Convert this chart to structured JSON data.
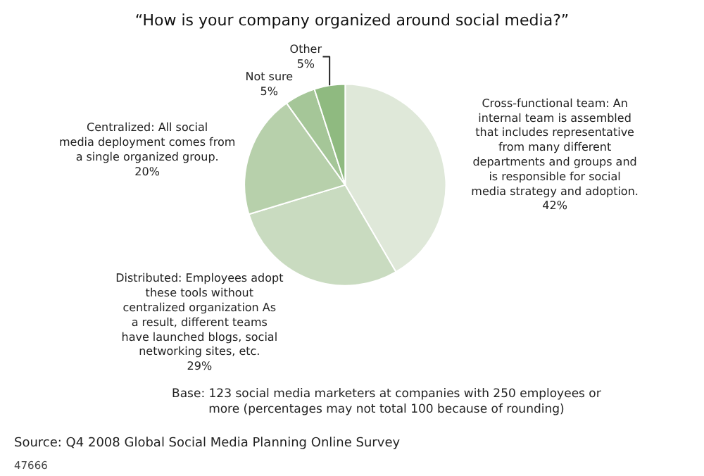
{
  "chart_data": {
    "type": "pie",
    "title": "“How is your company organized around social media?”",
    "categories": [
      "Cross-functional team: An internal team is assembled that includes representative from many different departments and groups and is responsible for social media strategy and adoption.",
      "Distributed: Employees adopt these tools without centralized organization As a result, different teams have launched blogs, social networking sites, etc.",
      "Centralized: All social media deployment comes from a single organized group.",
      "Not sure",
      "Other"
    ],
    "values": [
      42,
      29,
      20,
      5,
      5
    ],
    "value_labels": [
      "42%",
      "29%",
      "20%",
      "5%",
      "5%"
    ],
    "colors": [
      "#dfe8d9",
      "#c9dbc0",
      "#b7d0ab",
      "#a5c698",
      "#8fba80"
    ],
    "annotations": [
      "Base: 123 social media marketers at companies with 250 employees or more (percentages may not total 100 because of rounding)",
      "Source: Q4 2008 Global Social Media Planning Online Survey",
      "47666"
    ]
  }
}
